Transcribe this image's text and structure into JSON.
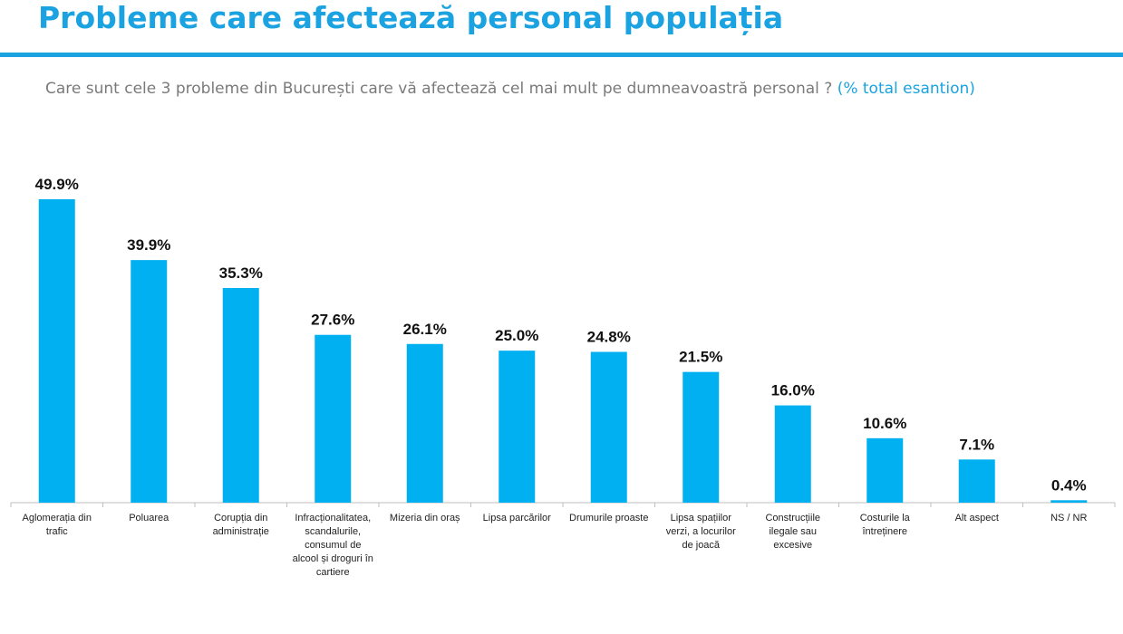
{
  "header": {
    "title": "Probleme care afectează personal populația",
    "subtitle_question": "Care sunt cele 3 probleme din București care vă afectează cel mai mult pe dumneavoastră personal ?",
    "subtitle_note": "(% total esantion)"
  },
  "colors": {
    "accent": "#1aa3e0",
    "bar": "#00b0f0"
  },
  "chart_data": {
    "type": "bar",
    "categories": [
      "Aglomerația din trafic",
      "Poluarea",
      "Corupția din administrație",
      "Infracționalitatea, scandalurile, consumul de alcool și droguri în cartiere",
      "Mizeria din oraș",
      "Lipsa parcărilor",
      "Drumurile proaste",
      "Lipsa spațiilor verzi, a locurilor de joacă",
      "Construcțiile ilegale sau excesive",
      "Costurile la întreținere",
      "Alt aspect",
      "NS / NR"
    ],
    "values": [
      49.9,
      39.9,
      35.3,
      27.6,
      26.1,
      25.0,
      24.8,
      21.5,
      16.0,
      10.6,
      7.1,
      0.4
    ],
    "value_labels": [
      "49.9%",
      "39.9%",
      "35.3%",
      "27.6%",
      "26.1%",
      "25.0%",
      "24.8%",
      "21.5%",
      "16.0%",
      "10.6%",
      "7.1%",
      "0.4%"
    ],
    "category_lines": [
      [
        "Aglomerația din",
        "trafic"
      ],
      [
        "Poluarea"
      ],
      [
        "Corupția din",
        "administrație"
      ],
      [
        "Infracționalitatea,",
        "scandalurile,",
        "consumul de",
        "alcool și droguri în",
        "cartiere"
      ],
      [
        "Mizeria din oraș"
      ],
      [
        "Lipsa parcărilor"
      ],
      [
        "Drumurile proaste"
      ],
      [
        "Lipsa spațiilor",
        "verzi, a locurilor",
        "de joacă"
      ],
      [
        "Construcțiile",
        "ilegale sau",
        "excesive"
      ],
      [
        "Costurile la",
        "întreținere"
      ],
      [
        "Alt aspect"
      ],
      [
        "NS / NR"
      ]
    ],
    "ylim": [
      0,
      50
    ],
    "grid": false,
    "legend": "none"
  }
}
